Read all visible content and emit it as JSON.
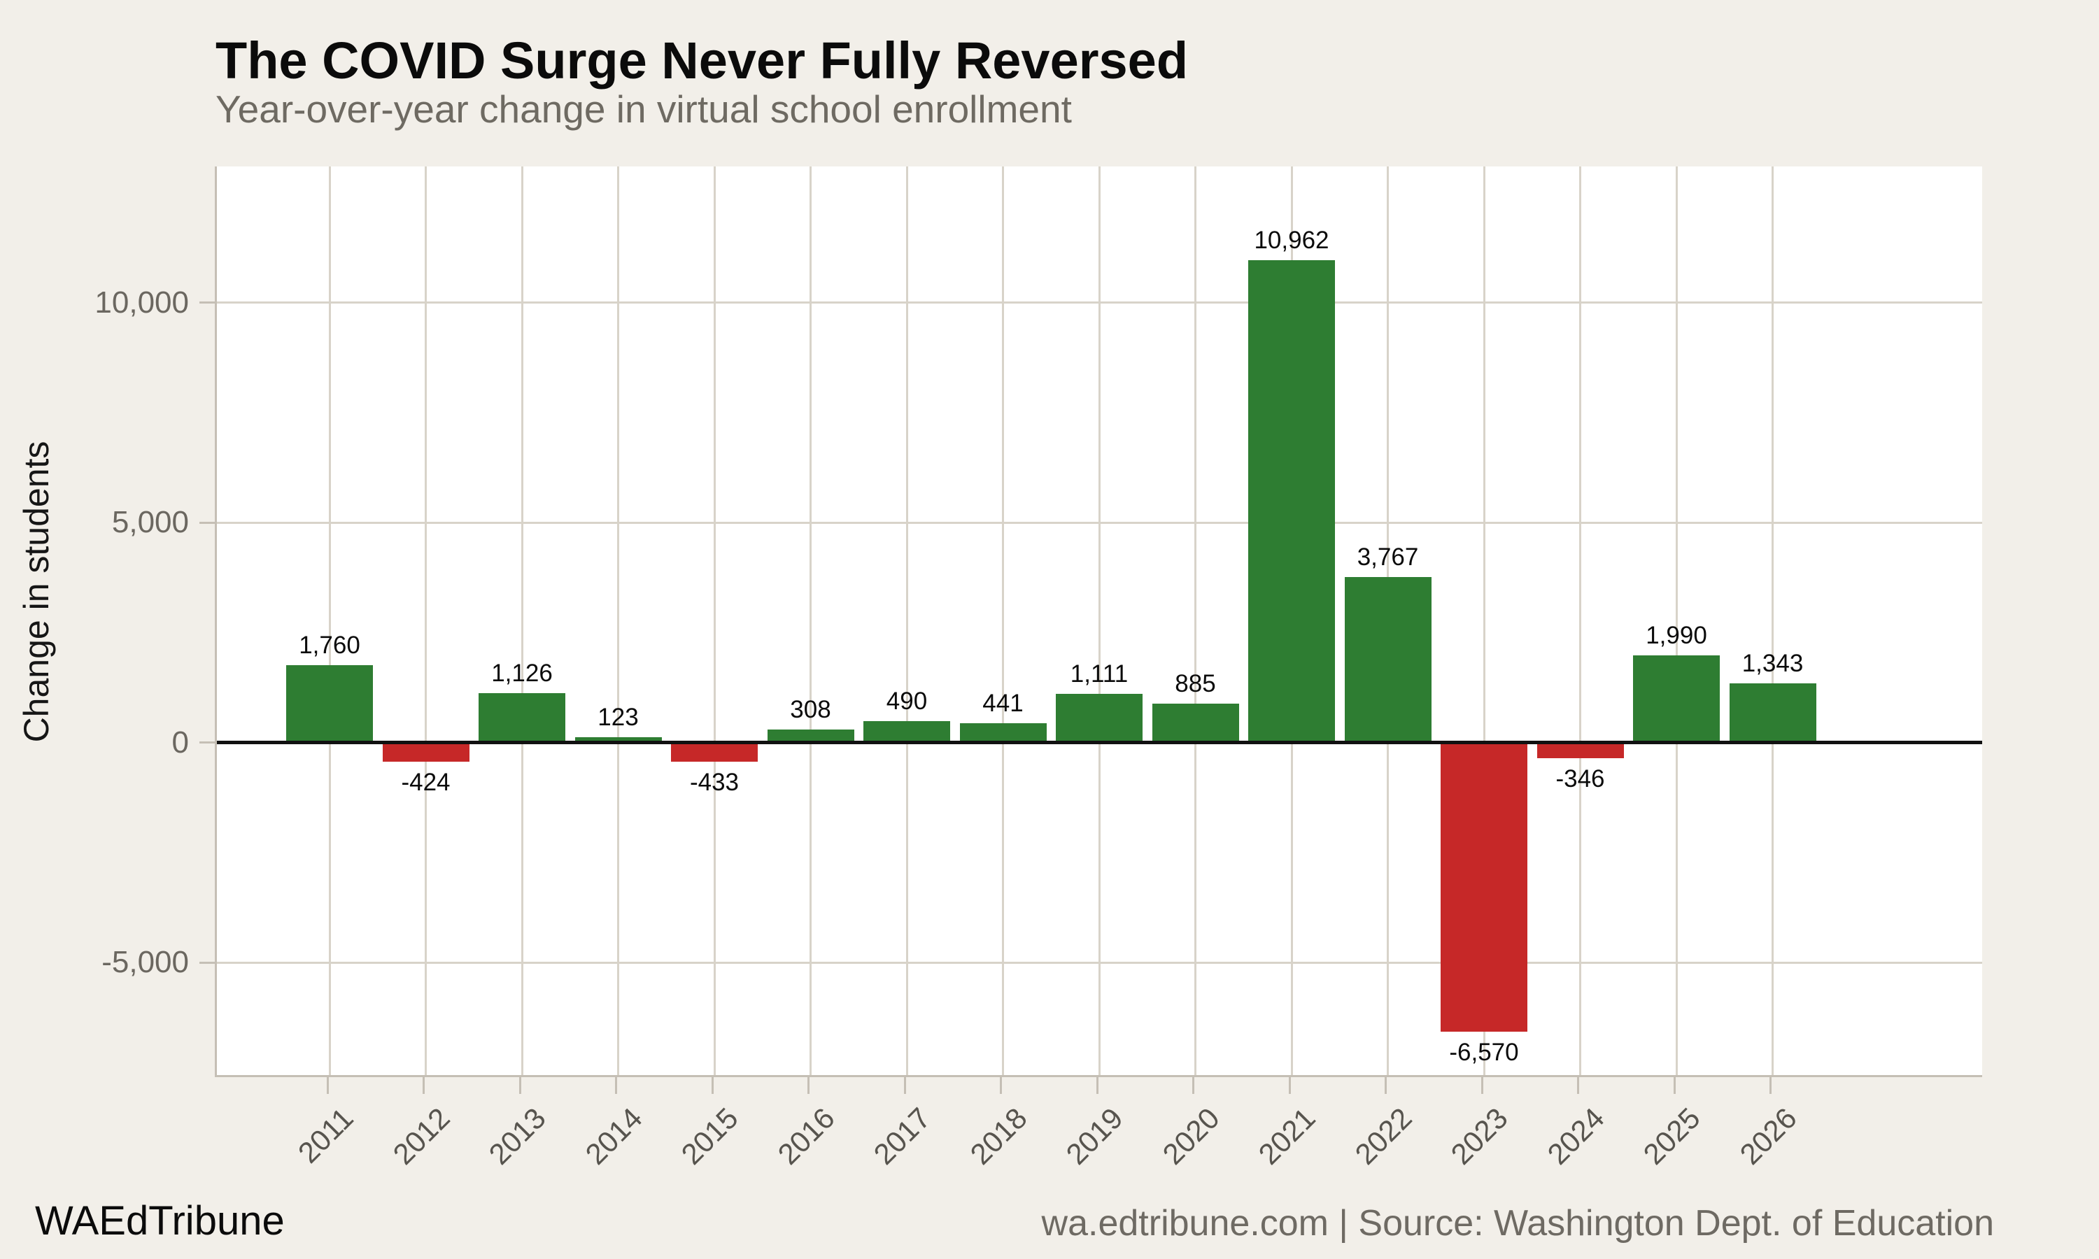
{
  "page": {
    "background": "#f2efe9",
    "plot_background": "#ffffff"
  },
  "header": {
    "title": "The COVID Surge Never Fully Reversed",
    "subtitle": "Year-over-year change in virtual school enrollment"
  },
  "chart_data": {
    "type": "bar",
    "title": "The COVID Surge Never Fully Reversed",
    "subtitle": "Year-over-year change in virtual school enrollment",
    "xlabel": "",
    "ylabel": "Change in students",
    "categories": [
      "2011",
      "2012",
      "2013",
      "2014",
      "2015",
      "2016",
      "2017",
      "2018",
      "2019",
      "2020",
      "2021",
      "2022",
      "2023",
      "2024",
      "2025",
      "2026"
    ],
    "values": [
      1760,
      -424,
      1126,
      123,
      -433,
      308,
      490,
      441,
      1111,
      885,
      10962,
      3767,
      -6570,
      -346,
      1990,
      1343
    ],
    "value_labels": [
      "1,760",
      "-424",
      "1,126",
      "123",
      "-433",
      "308",
      "490",
      "441",
      "1,111",
      "885",
      "10,962",
      "3,767",
      "-6,570",
      "-346",
      "1,990",
      "1,343"
    ],
    "bar_colors": {
      "positive": "#2e7d32",
      "negative": "#c62828"
    },
    "yticks": [
      {
        "value": -5000,
        "label": "-5,000"
      },
      {
        "value": 0,
        "label": "0"
      },
      {
        "value": 5000,
        "label": "5,000"
      },
      {
        "value": 10000,
        "label": "10,000"
      }
    ],
    "ylim": [
      -7600,
      13100
    ],
    "grid": "on",
    "legend": "none",
    "zero_line_color": "#111111",
    "grid_color": "#d8d3c9"
  },
  "footer": {
    "brand": "WAEdTribune",
    "source": "wa.edtribune.com | Source: Washington Dept. of Education"
  }
}
